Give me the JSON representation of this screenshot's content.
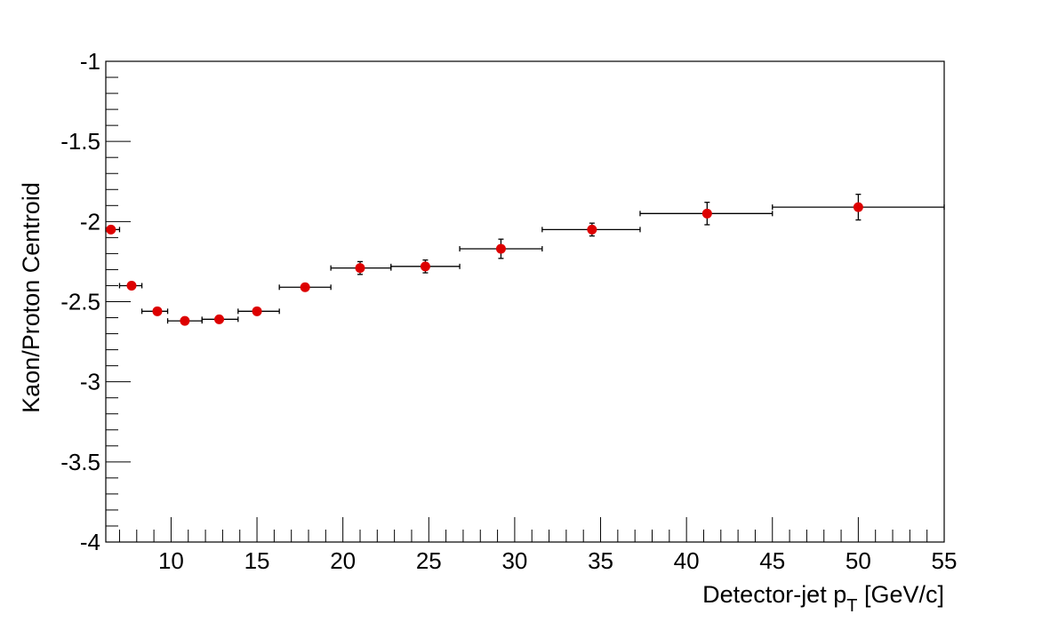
{
  "chart_data": {
    "type": "scatter",
    "xlabel": "Detector-jet p",
    "xlabel_subscript": "T",
    "xlabel_suffix": " [GeV/c]",
    "ylabel": "Kaon/Proton Centroid",
    "xlim": [
      6.2,
      55
    ],
    "ylim": [
      -4,
      -1
    ],
    "x_ticks": [
      "10",
      "15",
      "20",
      "25",
      "30",
      "35",
      "40",
      "45",
      "50",
      "55"
    ],
    "y_ticks": [
      "-1",
      "-1.5",
      "-2",
      "-2.5",
      "-3",
      "-3.5",
      "-4"
    ],
    "grid": false,
    "legend": "none",
    "marker_color": "#dd0000",
    "points": [
      {
        "x": 6.5,
        "y": -2.05,
        "xlow": 6.2,
        "xhigh": 7.0,
        "yerr": 0.0
      },
      {
        "x": 7.7,
        "y": -2.4,
        "xlow": 7.0,
        "xhigh": 8.3,
        "yerr": 0.0
      },
      {
        "x": 9.2,
        "y": -2.56,
        "xlow": 8.3,
        "xhigh": 9.8,
        "yerr": 0.0
      },
      {
        "x": 10.8,
        "y": -2.62,
        "xlow": 9.8,
        "xhigh": 11.8,
        "yerr": 0.01
      },
      {
        "x": 12.8,
        "y": -2.61,
        "xlow": 11.8,
        "xhigh": 13.9,
        "yerr": 0.01
      },
      {
        "x": 15.0,
        "y": -2.56,
        "xlow": 13.9,
        "xhigh": 16.3,
        "yerr": 0.01
      },
      {
        "x": 17.8,
        "y": -2.41,
        "xlow": 16.3,
        "xhigh": 19.3,
        "yerr": 0.01
      },
      {
        "x": 21.0,
        "y": -2.29,
        "xlow": 19.3,
        "xhigh": 22.8,
        "yerr": 0.04
      },
      {
        "x": 24.8,
        "y": -2.28,
        "xlow": 22.8,
        "xhigh": 26.8,
        "yerr": 0.04
      },
      {
        "x": 29.2,
        "y": -2.17,
        "xlow": 26.8,
        "xhigh": 31.6,
        "yerr": 0.06
      },
      {
        "x": 34.5,
        "y": -2.05,
        "xlow": 31.6,
        "xhigh": 37.3,
        "yerr": 0.04
      },
      {
        "x": 41.2,
        "y": -1.95,
        "xlow": 37.3,
        "xhigh": 45.0,
        "yerr": 0.07
      },
      {
        "x": 50.0,
        "y": -1.91,
        "xlow": 45.0,
        "xhigh": 55.0,
        "yerr": 0.08
      }
    ]
  }
}
